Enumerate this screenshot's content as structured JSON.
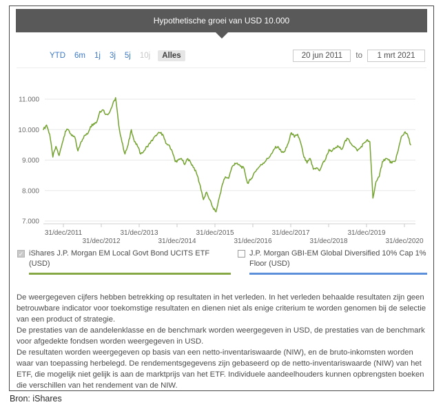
{
  "header": {
    "title": "Hypothetische groei van USD 10.000"
  },
  "period_selector": {
    "options": [
      {
        "label": "YTD",
        "state": "link"
      },
      {
        "label": "6m",
        "state": "link"
      },
      {
        "label": "1j",
        "state": "link"
      },
      {
        "label": "3j",
        "state": "link"
      },
      {
        "label": "5j",
        "state": "link"
      },
      {
        "label": "10j",
        "state": "disabled"
      },
      {
        "label": "Alles",
        "state": "selected"
      }
    ]
  },
  "date_range": {
    "start": "20 jun 2011",
    "separator": "to",
    "end": "1 mrt 2021"
  },
  "legend": [
    {
      "label": "iShares J.P. Morgan EM Local Govt Bond UCITS ETF (USD)",
      "checked": true,
      "disabled": true,
      "color": "#85a844"
    },
    {
      "label": "J.P. Morgan GBI-EM Global Diversified 10% Cap 1% Floor (USD)",
      "checked": false,
      "disabled": false,
      "color": "#5b8fd9"
    }
  ],
  "disclaimer": {
    "paragraphs": [
      "De weergegeven cijfers hebben betrekking op resultaten in het verleden. In het verleden behaalde resultaten zijn geen betrouwbare indicator voor toekomstige resultaten en dienen niet als enige criterium te worden genomen bij de selectie van een product of strategie.",
      "De prestaties van de aandelenklasse en de benchmark worden weergegeven in USD, de prestaties van de benchmark voor afgedekte fondsen worden weergegeven in USD.",
      "De resultaten worden weergegeven op basis van een netto-inventariswaarde (NIW), en de bruto-inkomsten worden waar van toepassing herbelegd. De rendementsgegevens zijn gebaseerd op de netto-inventariswaarde (NIW) van het ETF, die mogelijk niet gelijk is aan de marktprijs van het ETF. Individuele aandeelhouders kunnen opbrengsten boeken die verschillen van het rendement van de NIW."
    ]
  },
  "source": "Bron: iShares",
  "chart_data": {
    "type": "line",
    "title": "Hypothetische groei van USD 10.000",
    "xlabel": "",
    "ylabel": "",
    "ylim": [
      7000,
      11000
    ],
    "y_tick_values": [
      7000,
      8000,
      9000,
      10000,
      11000
    ],
    "y_tick_labels": [
      "7.000",
      "8.000",
      "9.000",
      "10.000",
      "11.000"
    ],
    "x_tick_labels": [
      "31/dec/2011",
      "31/dec/2012",
      "31/dec/2013",
      "31/dec/2014",
      "31/dec/2015",
      "31/dec/2016",
      "31/dec/2017",
      "31/dec/2018",
      "31/dec/2019",
      "31/dec/2020"
    ],
    "x_range_labels": [
      "20 jun 2011",
      "1 mrt 2021"
    ],
    "grid": true,
    "legend_position": "bottom",
    "series": [
      {
        "name": "iShares J.P. Morgan EM Local Govt Bond UCITS ETF (USD)",
        "color": "#73a22f",
        "interval": "monthly",
        "start": "2011-06",
        "end": "2021-03",
        "values": [
          10000,
          10150,
          9850,
          9100,
          9450,
          9150,
          9550,
          9950,
          10000,
          9800,
          9750,
          9300,
          9600,
          9800,
          9850,
          10100,
          10200,
          10250,
          10600,
          10650,
          10500,
          10550,
          10800,
          11050,
          10150,
          9600,
          9200,
          9500,
          10000,
          9600,
          9450,
          9200,
          9300,
          9450,
          9550,
          9700,
          9800,
          9900,
          9850,
          9550,
          9500,
          9300,
          8950,
          9000,
          9050,
          8850,
          9050,
          8900,
          8750,
          8500,
          8150,
          7700,
          7950,
          7700,
          7450,
          7300,
          7750,
          8200,
          8450,
          8400,
          8750,
          8900,
          8850,
          8800,
          8700,
          8250,
          8350,
          8550,
          8700,
          8800,
          8900,
          9000,
          9100,
          9250,
          9450,
          9400,
          9250,
          9300,
          9550,
          9900,
          9750,
          9850,
          9550,
          9100,
          8900,
          9050,
          8700,
          8750,
          8650,
          8900,
          9050,
          9350,
          9300,
          9400,
          9450,
          9350,
          9600,
          9700,
          9550,
          9450,
          9300,
          9400,
          9550,
          9650,
          9600,
          7750,
          8300,
          8450,
          8950,
          9050,
          9000,
          8900,
          8950,
          9300,
          9750,
          9900,
          9850,
          9500
        ]
      },
      {
        "name": "J.P. Morgan GBI-EM Global Diversified 10% Cap 1% Floor (USD)",
        "color": "#5b8fd9",
        "visible": false,
        "values": []
      }
    ]
  }
}
